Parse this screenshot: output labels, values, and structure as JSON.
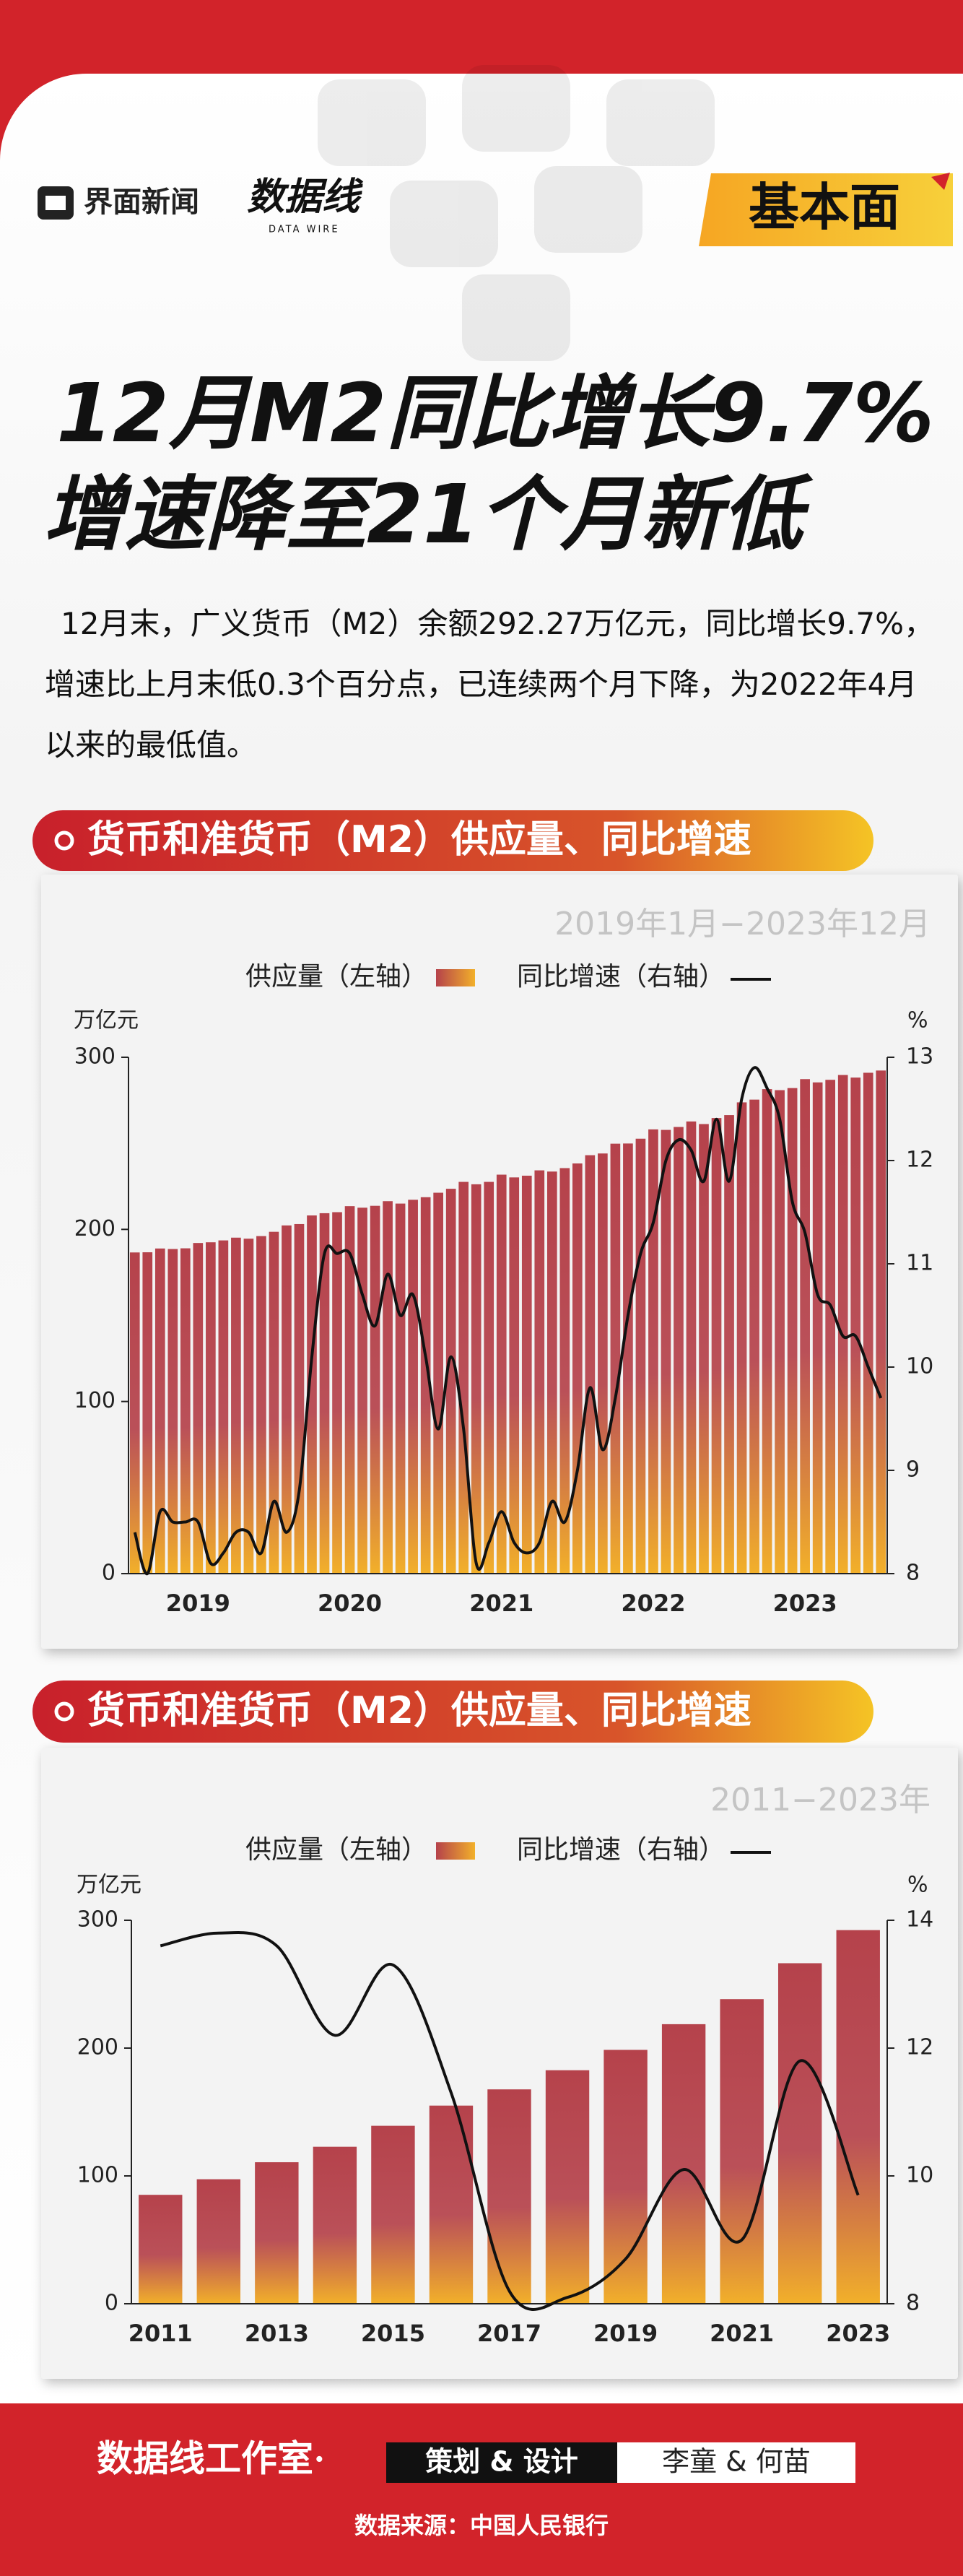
{
  "header": {
    "logo": "界面新闻",
    "brand": "数据线",
    "brand_sub": "DATA WIRE",
    "column": "基本面"
  },
  "title": [
    "12月M2同比增长9.7%",
    "增速降至21个月新低"
  ],
  "description": "12月末，广义货币（M2）余额292.27万亿元，同比增长9.7%，增速比上月末低0.3个百分点，已连续两个月下降，为2022年4月以来的最低值。",
  "chart_data": [
    {
      "type": "combo",
      "title": "货币和准货币（M2）供应量、同比增速",
      "subtitle": "2019年1月−2023年12月",
      "y_label": "万亿元",
      "y2_label": "%",
      "categories": [
        null,
        null,
        null,
        null,
        null,
        "2019",
        null,
        null,
        null,
        null,
        null,
        null,
        null,
        null,
        null,
        null,
        null,
        "2020",
        null,
        null,
        null,
        null,
        null,
        null,
        null,
        null,
        null,
        null,
        null,
        "2021",
        null,
        null,
        null,
        null,
        null,
        null,
        null,
        null,
        null,
        null,
        null,
        "2022",
        null,
        null,
        null,
        null,
        null,
        null,
        null,
        null,
        null,
        null,
        null,
        "2023",
        null,
        null,
        null,
        null,
        null,
        null
      ],
      "series": [
        {
          "name": "供应量（左轴）",
          "color": "#b5424b",
          "gradient_to": "#f2b02a",
          "axis": "y",
          "values": [
            186.6,
            186.7,
            188.9,
            188.6,
            189.0,
            192.1,
            192.5,
            193.6,
            195.2,
            194.6,
            196.1,
            198.6,
            202.3,
            203.1,
            208.1,
            209.4,
            210.0,
            213.5,
            212.6,
            213.7,
            216.4,
            215.0,
            217.2,
            218.7,
            221.3,
            223.6,
            227.6,
            226.2,
            227.6,
            231.8,
            230.2,
            231.2,
            234.3,
            233.6,
            235.6,
            238.3,
            243.1,
            244.1,
            249.8,
            249.9,
            252.7,
            258.1,
            257.8,
            259.5,
            262.7,
            261.2,
            264.7,
            266.4,
            273.8,
            275.4,
            281.5,
            280.9,
            282.1,
            287.3,
            285.4,
            286.9,
            289.7,
            288.2,
            291.0,
            292.3
          ]
        },
        {
          "name": "同比增速（右轴）",
          "color": "#111111",
          "axis": "y2",
          "values": [
            8.4,
            8.0,
            8.6,
            8.5,
            8.5,
            8.5,
            8.1,
            8.2,
            8.4,
            8.4,
            8.2,
            8.7,
            8.4,
            8.8,
            10.1,
            11.1,
            11.1,
            11.1,
            10.7,
            10.4,
            10.9,
            10.5,
            10.7,
            10.1,
            9.4,
            10.1,
            9.4,
            8.1,
            8.3,
            8.6,
            8.3,
            8.2,
            8.3,
            8.7,
            8.5,
            9.0,
            9.8,
            9.2,
            9.7,
            10.5,
            11.1,
            11.4,
            12.0,
            12.2,
            12.1,
            11.8,
            12.4,
            11.8,
            12.6,
            12.9,
            12.7,
            12.4,
            11.6,
            11.3,
            10.7,
            10.6,
            10.3,
            10.3,
            10.0,
            9.7
          ]
        }
      ],
      "ylim": [
        0,
        300
      ],
      "yticks": [
        0,
        100,
        200,
        300
      ],
      "y2lim": [
        8,
        13
      ],
      "y2ticks": [
        8,
        9,
        10,
        11,
        12,
        13
      ]
    },
    {
      "type": "combo",
      "title": "货币和准货币（M2）供应量、同比增速",
      "subtitle": "2011−2023年",
      "y_label": "万亿元",
      "y2_label": "%",
      "categories": [
        "2011",
        null,
        "2013",
        null,
        "2015",
        null,
        "2017",
        null,
        "2019",
        null,
        "2021",
        null,
        "2023"
      ],
      "series": [
        {
          "name": "供应量（左轴）",
          "color": "#b5424b",
          "gradient_to": "#f2b02a",
          "axis": "y",
          "values": [
            85.2,
            97.4,
            110.7,
            122.8,
            139.2,
            155.0,
            167.7,
            182.7,
            198.6,
            218.7,
            238.3,
            266.4,
            292.3
          ]
        },
        {
          "name": "同比增速（右轴）",
          "color": "#111111",
          "axis": "y2",
          "values": [
            13.6,
            13.8,
            13.6,
            12.2,
            13.3,
            11.3,
            8.2,
            8.1,
            8.7,
            10.1,
            9.0,
            11.8,
            9.7
          ]
        }
      ],
      "ylim": [
        0,
        300
      ],
      "yticks": [
        0,
        100,
        200,
        300
      ],
      "y2lim": [
        8,
        14
      ],
      "y2ticks": [
        8,
        10,
        12,
        14
      ]
    }
  ],
  "footer": {
    "studio": "数据线工作室·",
    "role": "策划 & 设计",
    "authors": "李童 & 何苗",
    "source": "数据来源：中国人民银行"
  }
}
